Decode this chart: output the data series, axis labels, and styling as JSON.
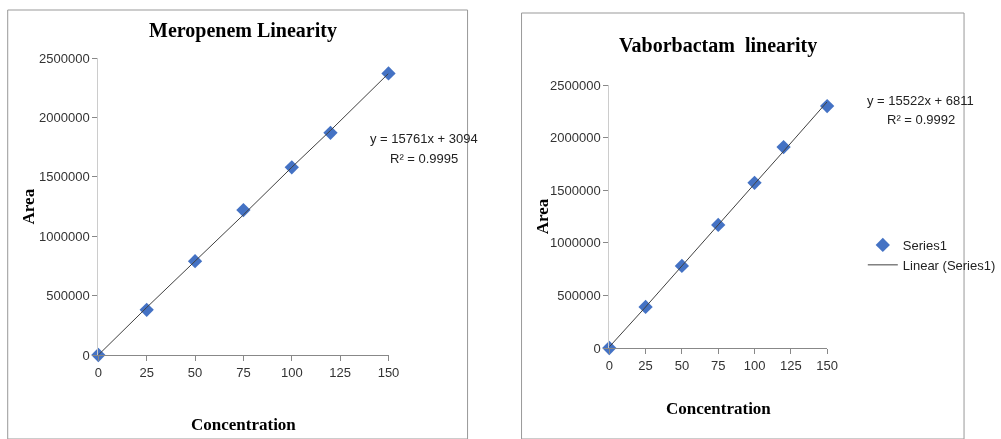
{
  "chart_data": [
    {
      "type": "scatter",
      "title": "Meropenem Linearity",
      "xlabel": "Concentration",
      "ylabel": "Area",
      "x": [
        0,
        25,
        50,
        75,
        100,
        120,
        150
      ],
      "series": [
        {
          "color": "#4472c4",
          "marker": "diamond",
          "values": [
            0,
            380000,
            790000,
            1220000,
            1580000,
            1870000,
            2370000
          ]
        },
        {
          "type": "line",
          "color": "#404040",
          "marker": "none",
          "line_style": "solid",
          "values": [
            0,
            400000,
            790000,
            1180000,
            1580000,
            1890000,
            2370000
          ]
        }
      ],
      "xlim": [
        0,
        150
      ],
      "xticks": [
        0,
        25,
        50,
        75,
        100,
        125,
        150
      ],
      "ylim": [
        0,
        2500000
      ],
      "yticks": [
        0,
        500000,
        1000000,
        1500000,
        2000000,
        2500000
      ],
      "grid": false,
      "legend": false,
      "annotations": [
        "y = 15761x + 3094",
        "R² = 0.9995"
      ]
    },
    {
      "type": "scatter",
      "title": "Vaborbactam  linearity",
      "xlabel": "Concentration",
      "ylabel": "Area",
      "x": [
        0,
        25,
        50,
        75,
        100,
        120,
        150
      ],
      "series": [
        {
          "name": "Series1",
          "color": "#4472c4",
          "marker": "diamond",
          "values": [
            0,
            390000,
            780000,
            1170000,
            1570000,
            1910000,
            2300000
          ]
        },
        {
          "type": "line",
          "name": "Linear (Series1)",
          "color": "#404040",
          "marker": "none",
          "line_style": "solid",
          "values": [
            10000,
            390000,
            780000,
            1170000,
            1560000,
            1870000,
            2340000
          ]
        }
      ],
      "xlim": [
        0,
        150
      ],
      "xticks": [
        0,
        25,
        50,
        75,
        100,
        125,
        150
      ],
      "ylim": [
        0,
        2500000
      ],
      "yticks": [
        0,
        500000,
        1000000,
        1500000,
        2000000,
        2500000
      ],
      "grid": false,
      "legend": "right",
      "annotations": [
        "y = 15522x + 6811",
        "R² = 0.9992"
      ]
    }
  ]
}
